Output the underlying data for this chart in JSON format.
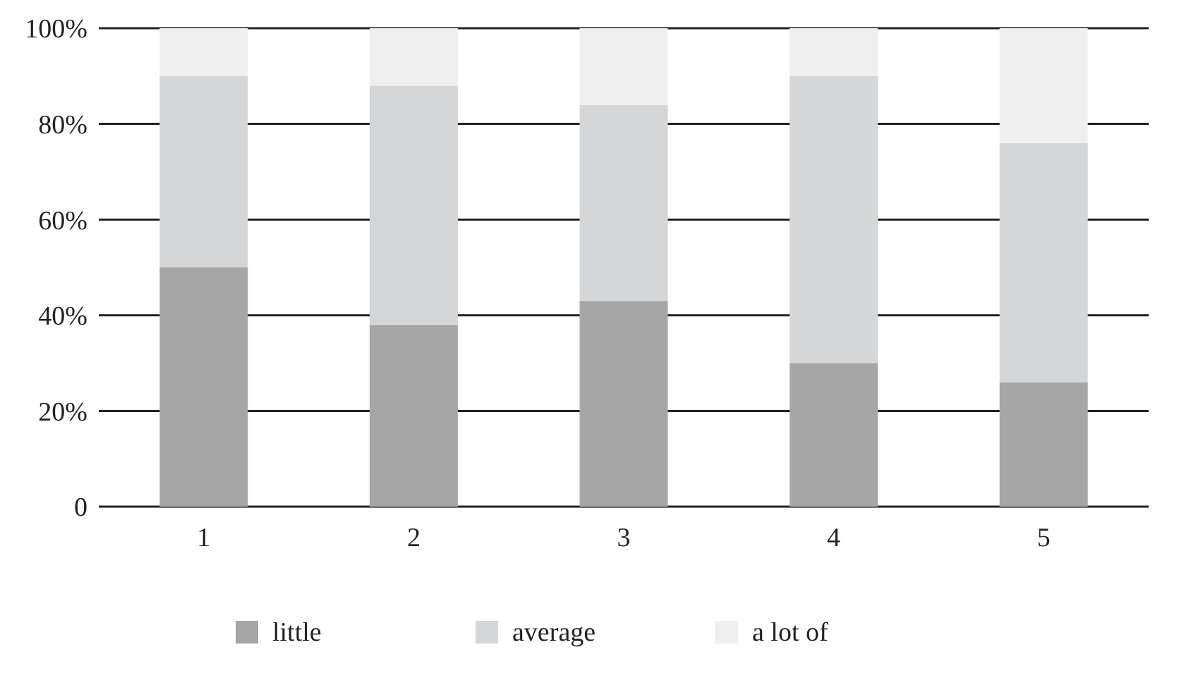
{
  "chart_data": {
    "type": "bar",
    "stacked": true,
    "categories": [
      "1",
      "2",
      "3",
      "4",
      "5"
    ],
    "series": [
      {
        "name": "little",
        "color": "#a6a6a6",
        "values": [
          50,
          38,
          43,
          30,
          26
        ]
      },
      {
        "name": "average",
        "color": "#d4d6d8",
        "values": [
          40,
          50,
          41,
          60,
          50
        ]
      },
      {
        "name": "a lot of",
        "color": "#efefef",
        "values": [
          10,
          12,
          16,
          10,
          24
        ]
      }
    ],
    "ylim": [
      0,
      100
    ],
    "yticks": [
      0,
      {
        "value": 20,
        "label": "20%"
      },
      {
        "value": 40,
        "label": "40%"
      },
      {
        "value": 60,
        "label": "60%"
      },
      {
        "value": 80,
        "label": "80%"
      },
      {
        "value": 100,
        "label": "100%"
      }
    ],
    "grid": "y",
    "legend": "bottom"
  }
}
